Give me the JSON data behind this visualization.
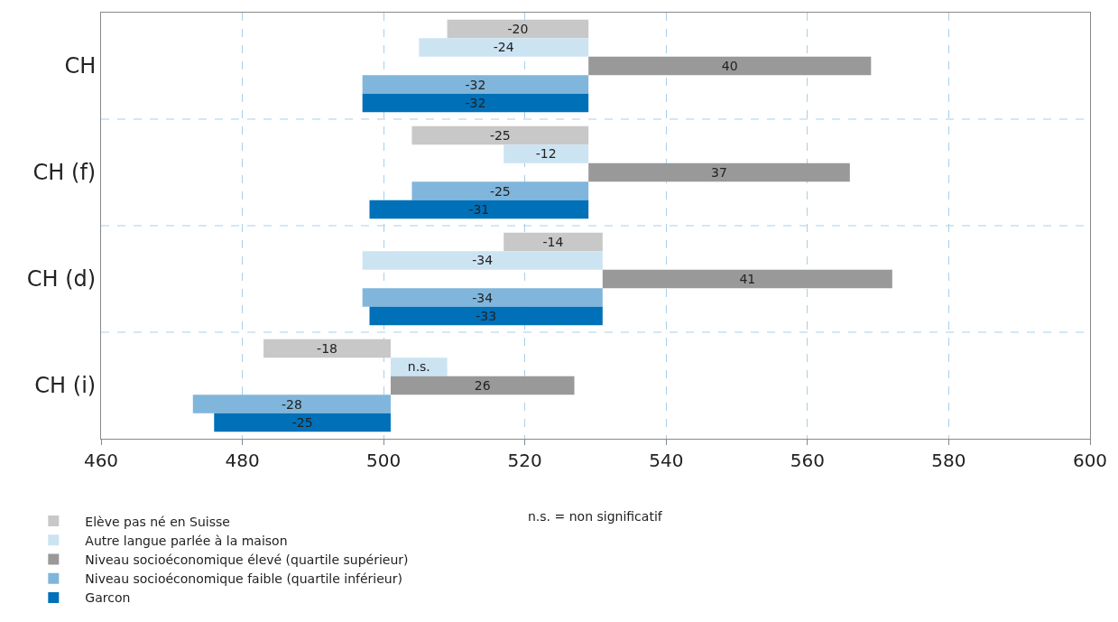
{
  "chart_data": {
    "type": "bar",
    "orientation": "horizontal",
    "categories": [
      "CH",
      "CH (f)",
      "CH (d)",
      "CH (i)"
    ],
    "series": [
      {
        "name": "Elève pas né en Suisse",
        "color": "#c8c8c8",
        "values": [
          -20,
          -25,
          -14,
          -18
        ],
        "base": [
          529,
          529,
          531,
          501
        ],
        "value_labels": [
          "-20",
          "-25",
          "-14",
          "-18"
        ]
      },
      {
        "name": "Autre langue parlée à la maison",
        "color": "#cce3f2",
        "values": [
          -24,
          -12,
          -34,
          8
        ],
        "base": [
          529,
          529,
          531,
          501
        ],
        "value_labels": [
          "-24",
          "-12",
          "-34",
          "n.s."
        ]
      },
      {
        "name": "Niveau socioéconomique élevé (quartile supérieur)",
        "color": "#999999",
        "values": [
          40,
          37,
          41,
          26
        ],
        "base": [
          529,
          529,
          531,
          501
        ],
        "value_labels": [
          "40",
          "37",
          "41",
          "26"
        ]
      },
      {
        "name": "Niveau socioéconomique faible (quartile inférieur)",
        "color": "#80b6db",
        "values": [
          -32,
          -25,
          -34,
          -28
        ],
        "base": [
          529,
          529,
          531,
          501
        ],
        "value_labels": [
          "-32",
          "-25",
          "-34",
          "-28"
        ]
      },
      {
        "name": "Garcon",
        "color": "#0070b8",
        "values": [
          -32,
          -31,
          -33,
          -25
        ],
        "base": [
          529,
          529,
          531,
          501
        ],
        "value_labels": [
          "-32",
          "-31",
          "-33",
          "-25"
        ]
      }
    ],
    "xlim": [
      460,
      600
    ],
    "xticks": [
      460,
      480,
      500,
      520,
      540,
      560,
      580,
      600
    ],
    "grid": true,
    "legend": "bottom",
    "annotations": [
      "n.s. = non significatif"
    ]
  }
}
